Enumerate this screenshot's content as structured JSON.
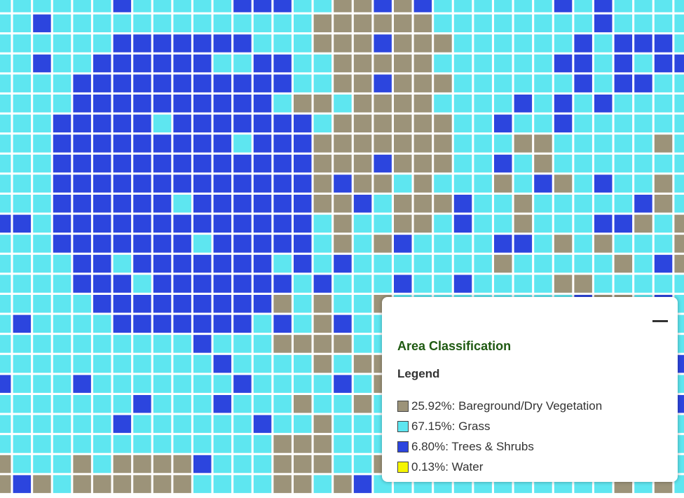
{
  "legend": {
    "title": "Area Classification",
    "heading": "Legend",
    "items": [
      {
        "text": "25.92%: Bareground/Dry Vegetation",
        "color": "#9c9379"
      },
      {
        "text": "67.15%: Grass",
        "color": "#5ee6f0"
      },
      {
        "text": "6.80%: Trees & Shrubs",
        "color": "#2c45de"
      },
      {
        "text": "0.13%: Water",
        "color": "#f5f500"
      }
    ]
  }
}
